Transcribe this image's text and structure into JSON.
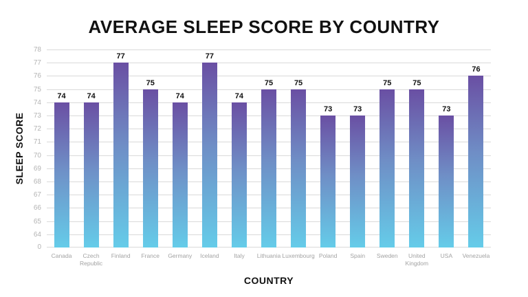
{
  "chart_data": {
    "type": "bar",
    "title": "AVERAGE SLEEP SCORE BY COUNTRY",
    "xlabel": "COUNTRY",
    "ylabel": "SLEEP SCORE",
    "categories": [
      "Canada",
      "Czech Republic",
      "Finland",
      "France",
      "Germany",
      "Iceland",
      "Italy",
      "Lithuania",
      "Luxembourg",
      "Poland",
      "Spain",
      "Sweden",
      "United Kingdom",
      "USA",
      "Venezuela"
    ],
    "values": [
      74,
      74,
      77,
      75,
      74,
      77,
      74,
      75,
      75,
      73,
      73,
      75,
      75,
      73,
      76
    ],
    "value_labels": [
      "74",
      "74",
      "77",
      "75",
      "74",
      "77",
      "74",
      "75",
      "75",
      "73",
      "73",
      "75",
      "75",
      "73",
      "76"
    ],
    "ytick_labels": [
      "78",
      "77",
      "76",
      "75",
      "74",
      "73",
      "72",
      "71",
      "70",
      "69",
      "68",
      "67",
      "66",
      "65",
      "64",
      "0"
    ],
    "axis_top_value": 78,
    "axis_baseline_value": 63,
    "grid": true,
    "legend": false,
    "colors": {
      "bar_gradient_top": "#6a4fa3",
      "bar_gradient_mid": "#6f8ec6",
      "bar_gradient_bottom": "#65cce9",
      "gridline": "#d9d9d9",
      "ytick_text": "#b3b3b3",
      "xtick_text": "#a2a2a2",
      "value_text": "#111111",
      "title_text": "#111111",
      "background": "#ffffff"
    }
  }
}
